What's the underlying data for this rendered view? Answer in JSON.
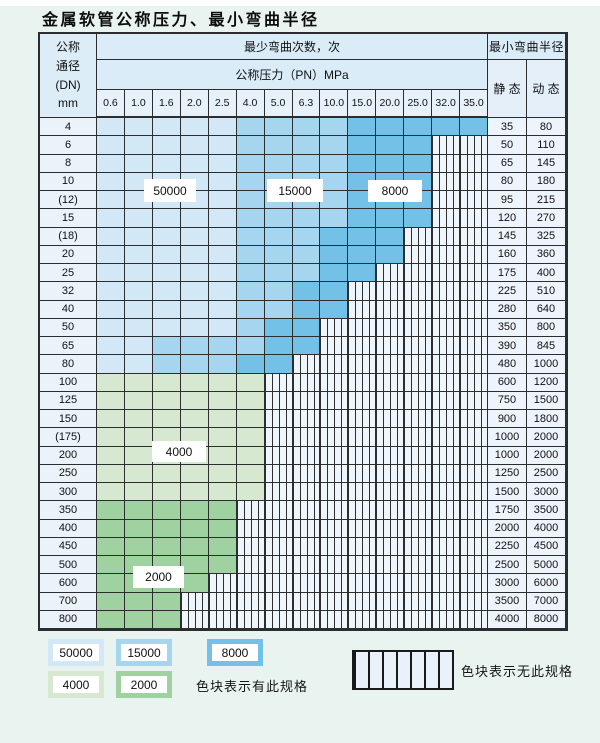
{
  "title": "金属软管公称压力、最小弯曲半径",
  "colors": {
    "b1": "#d2e8f7",
    "b2": "#a6d5f0",
    "b3": "#74c1e8",
    "g1": "#d6e9d0",
    "g2": "#a0d1a0",
    "hatch_bg": "#eef5fb",
    "grid_line": "#2b2d2f",
    "header_bg": "#d9ecf8",
    "page_bg": "#e9f3ef"
  },
  "table": {
    "header": {
      "dn_lines": [
        "公称",
        "通径",
        "(DN)",
        "mm"
      ],
      "bend_cycles": "最少弯曲次数，次",
      "pressure": "公称压力（PN）MPa",
      "pressures": [
        "0.6",
        "1.0",
        "1.6",
        "2.0",
        "2.5",
        "4.0",
        "5.0",
        "6.3",
        "10.0",
        "15.0",
        "20.0",
        "25.0",
        "32.0",
        "35.0"
      ],
      "radius": "最小弯曲半径",
      "static": "静 态",
      "dynamic": "动 态"
    },
    "rows": [
      {
        "dn": "4",
        "static": "35",
        "dynamic": "80",
        "runs": [
          [
            "b1",
            5
          ],
          [
            "b2",
            4
          ],
          [
            "b3",
            5
          ]
        ]
      },
      {
        "dn": "6",
        "static": "50",
        "dynamic": "110",
        "runs": [
          [
            "b1",
            5
          ],
          [
            "b2",
            4
          ],
          [
            "b3",
            3
          ],
          [
            "x",
            2
          ]
        ]
      },
      {
        "dn": "8",
        "static": "65",
        "dynamic": "145",
        "runs": [
          [
            "b1",
            5
          ],
          [
            "b2",
            4
          ],
          [
            "b3",
            3
          ],
          [
            "x",
            2
          ]
        ]
      },
      {
        "dn": "10",
        "static": "80",
        "dynamic": "180",
        "runs": [
          [
            "b1",
            5
          ],
          [
            "b2",
            4
          ],
          [
            "b3",
            3
          ],
          [
            "x",
            2
          ]
        ]
      },
      {
        "dn": "(12)",
        "static": "95",
        "dynamic": "215",
        "runs": [
          [
            "b1",
            5
          ],
          [
            "b2",
            4
          ],
          [
            "b3",
            3
          ],
          [
            "x",
            2
          ]
        ]
      },
      {
        "dn": "15",
        "static": "120",
        "dynamic": "270",
        "runs": [
          [
            "b1",
            5
          ],
          [
            "b2",
            4
          ],
          [
            "b3",
            3
          ],
          [
            "x",
            2
          ]
        ]
      },
      {
        "dn": "(18)",
        "static": "145",
        "dynamic": "325",
        "runs": [
          [
            "b1",
            5
          ],
          [
            "b2",
            3
          ],
          [
            "b3",
            3
          ],
          [
            "x",
            3
          ]
        ]
      },
      {
        "dn": "20",
        "static": "160",
        "dynamic": "360",
        "runs": [
          [
            "b1",
            5
          ],
          [
            "b2",
            3
          ],
          [
            "b3",
            3
          ],
          [
            "x",
            3
          ]
        ]
      },
      {
        "dn": "25",
        "static": "175",
        "dynamic": "400",
        "runs": [
          [
            "b1",
            5
          ],
          [
            "b2",
            3
          ],
          [
            "b3",
            2
          ],
          [
            "x",
            4
          ]
        ]
      },
      {
        "dn": "32",
        "static": "225",
        "dynamic": "510",
        "runs": [
          [
            "b1",
            5
          ],
          [
            "b2",
            2
          ],
          [
            "b3",
            2
          ],
          [
            "x",
            5
          ]
        ]
      },
      {
        "dn": "40",
        "static": "280",
        "dynamic": "640",
        "runs": [
          [
            "b1",
            5
          ],
          [
            "b2",
            2
          ],
          [
            "b3",
            2
          ],
          [
            "x",
            5
          ]
        ]
      },
      {
        "dn": "50",
        "static": "350",
        "dynamic": "800",
        "runs": [
          [
            "b1",
            5
          ],
          [
            "b2",
            1
          ],
          [
            "b3",
            2
          ],
          [
            "x",
            6
          ]
        ]
      },
      {
        "dn": "65",
        "static": "390",
        "dynamic": "845",
        "runs": [
          [
            "b1",
            2
          ],
          [
            "b2",
            4
          ],
          [
            "b3",
            2
          ],
          [
            "x",
            6
          ]
        ]
      },
      {
        "dn": "80",
        "static": "480",
        "dynamic": "1000",
        "runs": [
          [
            "b1",
            2
          ],
          [
            "b2",
            3
          ],
          [
            "b3",
            2
          ],
          [
            "x",
            7
          ]
        ]
      },
      {
        "dn": "100",
        "static": "600",
        "dynamic": "1200",
        "runs": [
          [
            "g1",
            6
          ],
          [
            "x",
            8
          ]
        ]
      },
      {
        "dn": "125",
        "static": "750",
        "dynamic": "1500",
        "runs": [
          [
            "g1",
            6
          ],
          [
            "x",
            8
          ]
        ]
      },
      {
        "dn": "150",
        "static": "900",
        "dynamic": "1800",
        "runs": [
          [
            "g1",
            6
          ],
          [
            "x",
            8
          ]
        ]
      },
      {
        "dn": "(175)",
        "static": "1000",
        "dynamic": "2000",
        "runs": [
          [
            "g1",
            6
          ],
          [
            "x",
            8
          ]
        ]
      },
      {
        "dn": "200",
        "static": "1000",
        "dynamic": "2000",
        "runs": [
          [
            "g1",
            6
          ],
          [
            "x",
            8
          ]
        ]
      },
      {
        "dn": "250",
        "static": "1250",
        "dynamic": "2500",
        "runs": [
          [
            "g1",
            6
          ],
          [
            "x",
            8
          ]
        ]
      },
      {
        "dn": "300",
        "static": "1500",
        "dynamic": "3000",
        "runs": [
          [
            "g1",
            6
          ],
          [
            "x",
            8
          ]
        ]
      },
      {
        "dn": "350",
        "static": "1750",
        "dynamic": "3500",
        "runs": [
          [
            "g2",
            5
          ],
          [
            "x",
            9
          ]
        ]
      },
      {
        "dn": "400",
        "static": "2000",
        "dynamic": "4000",
        "runs": [
          [
            "g2",
            5
          ],
          [
            "x",
            9
          ]
        ]
      },
      {
        "dn": "450",
        "static": "2250",
        "dynamic": "4500",
        "runs": [
          [
            "g2",
            5
          ],
          [
            "x",
            9
          ]
        ]
      },
      {
        "dn": "500",
        "static": "2500",
        "dynamic": "5000",
        "runs": [
          [
            "g2",
            5
          ],
          [
            "x",
            9
          ]
        ]
      },
      {
        "dn": "600",
        "static": "3000",
        "dynamic": "6000",
        "runs": [
          [
            "g2",
            4
          ],
          [
            "x",
            10
          ]
        ]
      },
      {
        "dn": "700",
        "static": "3500",
        "dynamic": "7000",
        "runs": [
          [
            "g2",
            3
          ],
          [
            "x",
            11
          ]
        ]
      },
      {
        "dn": "800",
        "static": "4000",
        "dynamic": "8000",
        "runs": [
          [
            "g2",
            3
          ],
          [
            "x",
            11
          ]
        ]
      }
    ],
    "overlay_labels": [
      "50000",
      "15000",
      "8000",
      "4000",
      "2000"
    ]
  },
  "legend": {
    "classes": [
      {
        "label": "50000",
        "color_key": "b1"
      },
      {
        "label": "15000",
        "color_key": "b2"
      },
      {
        "label": "8000",
        "color_key": "b3"
      },
      {
        "label": "4000",
        "color_key": "g1"
      },
      {
        "label": "2000",
        "color_key": "g2"
      }
    ],
    "has_spec": "色块表示有此规格",
    "no_spec": "色块表示无此规格"
  }
}
